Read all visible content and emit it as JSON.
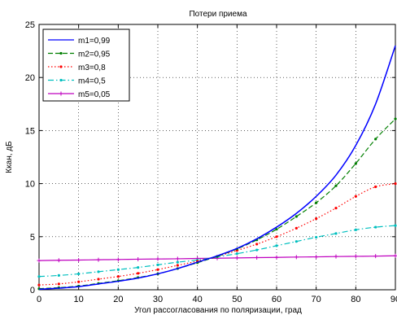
{
  "chart_data": {
    "type": "line",
    "title": "Потери приема",
    "xlabel": "Угол рассогласования по поляризации, град",
    "ylabel": "Ккан, дБ",
    "xlim": [
      0,
      90
    ],
    "ylim": [
      0,
      25
    ],
    "xticks": [
      0,
      10,
      20,
      30,
      40,
      50,
      60,
      70,
      80,
      90
    ],
    "yticks": [
      0,
      5,
      10,
      15,
      20,
      25
    ],
    "grid": true,
    "legend_position": "top-left",
    "x": [
      0,
      5,
      10,
      15,
      20,
      25,
      30,
      35,
      40,
      45,
      50,
      55,
      60,
      65,
      70,
      75,
      80,
      85,
      90
    ],
    "series": [
      {
        "name": "m1=0,99",
        "color": "#0000ff",
        "style": "solid",
        "marker": "none",
        "values": [
          0.05,
          0.15,
          0.3,
          0.55,
          0.8,
          1.1,
          1.5,
          2.0,
          2.6,
          3.2,
          3.9,
          4.8,
          5.9,
          7.2,
          8.8,
          10.8,
          13.6,
          17.5,
          23.0
        ]
      },
      {
        "name": "m2=0,95",
        "color": "#007f00",
        "style": "dashed",
        "marker": "dot",
        "values": [
          0.1,
          0.2,
          0.35,
          0.6,
          0.85,
          1.15,
          1.5,
          2.0,
          2.55,
          3.15,
          3.85,
          4.7,
          5.7,
          6.9,
          8.2,
          9.8,
          11.9,
          14.2,
          16.1
        ]
      },
      {
        "name": "m3=0,8",
        "color": "#ff0000",
        "style": "dotted",
        "marker": "dot",
        "values": [
          0.45,
          0.55,
          0.75,
          1.0,
          1.25,
          1.55,
          1.9,
          2.3,
          2.7,
          3.15,
          3.7,
          4.3,
          5.0,
          5.8,
          6.7,
          7.7,
          8.8,
          9.7,
          10.0
        ]
      },
      {
        "name": "m4=0,5",
        "color": "#00bfbf",
        "style": "dashdot",
        "marker": "dot",
        "values": [
          1.25,
          1.35,
          1.5,
          1.7,
          1.9,
          2.1,
          2.35,
          2.6,
          2.8,
          3.1,
          3.4,
          3.75,
          4.15,
          4.55,
          4.95,
          5.3,
          5.65,
          5.9,
          6.05
        ]
      },
      {
        "name": "m5=0,05",
        "color": "#bf00bf",
        "style": "solid",
        "marker": "plus",
        "values": [
          2.75,
          2.78,
          2.8,
          2.83,
          2.85,
          2.88,
          2.9,
          2.92,
          2.95,
          2.97,
          3.0,
          3.03,
          3.05,
          3.08,
          3.1,
          3.13,
          3.15,
          3.17,
          3.2
        ]
      }
    ]
  }
}
